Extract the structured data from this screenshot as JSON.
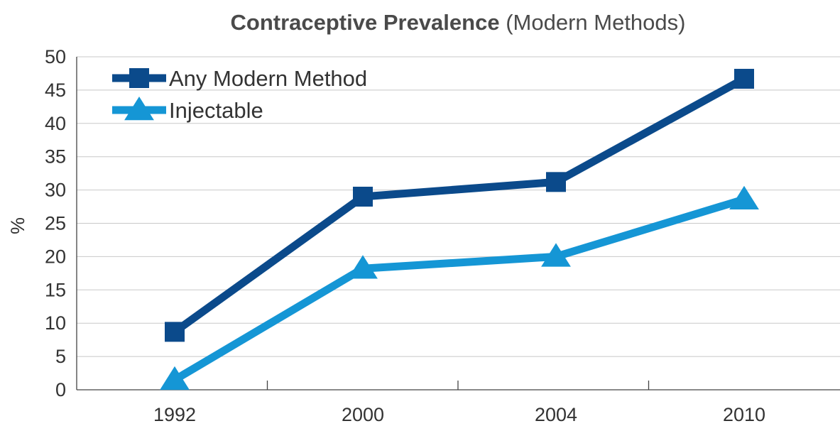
{
  "chart_data": {
    "type": "line",
    "title": "Contraceptive Prevalence",
    "subtitle": "(Modern Methods)",
    "xlabel": "",
    "ylabel": "%",
    "categories": [
      "1992",
      "2000",
      "2004",
      "2010"
    ],
    "ylim": [
      0,
      50
    ],
    "yticks": [
      "0",
      "5",
      "10",
      "15",
      "20",
      "25",
      "30",
      "35",
      "40",
      "45",
      "50"
    ],
    "grid": true,
    "legend_position": "top-left",
    "series": [
      {
        "name": "Any Modern Method",
        "values": [
          8.7,
          29.0,
          31.2,
          46.7
        ],
        "color": "#0b4a8b",
        "marker": "square"
      },
      {
        "name": "Injectable",
        "values": [
          1.5,
          18.2,
          20.0,
          28.6
        ],
        "color": "#1596d5",
        "marker": "triangle"
      }
    ]
  }
}
